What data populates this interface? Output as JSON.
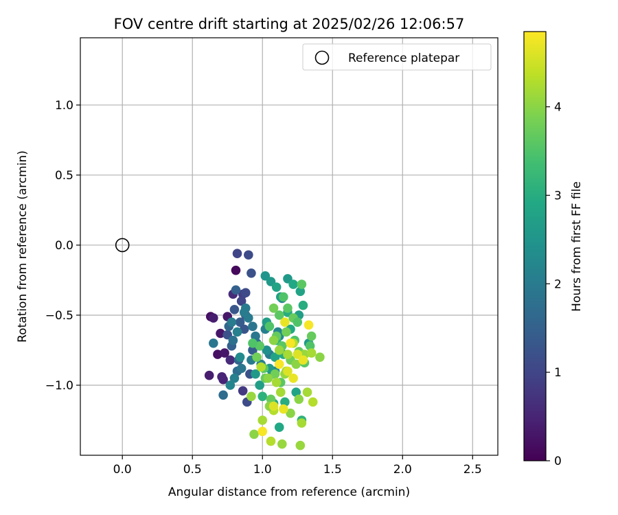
{
  "chart_data": {
    "type": "scatter",
    "title": "FOV centre drift starting at 2025/02/26 12:06:57",
    "xlabel": "Angular distance from reference (arcmin)",
    "ylabel": "Rotation from reference (arcmin)",
    "xlim": [
      -0.3,
      2.68
    ],
    "ylim": [
      -1.5,
      1.48
    ],
    "x_ticks": [
      0.0,
      0.5,
      1.0,
      1.5,
      2.0,
      2.5
    ],
    "x_tick_labels": [
      "0.0",
      "0.5",
      "1.0",
      "1.5",
      "2.0",
      "2.5"
    ],
    "y_ticks": [
      -1.0,
      -0.5,
      0.0,
      0.5,
      1.0
    ],
    "y_tick_labels": [
      "−1.0",
      "−0.5",
      "0.0",
      "0.5",
      "1.0"
    ],
    "grid": true,
    "legend": {
      "placement": "top-right",
      "entries": [
        "Reference platepar"
      ]
    },
    "reference_point": {
      "x": 0.0,
      "y": 0.0
    },
    "colorbar": {
      "label": "Hours from first FF file",
      "range": [
        0,
        4.85
      ],
      "ticks": [
        0,
        1,
        2,
        3,
        4
      ],
      "tick_labels": [
        "0",
        "1",
        "2",
        "3",
        "4"
      ],
      "colormap": "viridis"
    },
    "series": [
      {
        "x": [
          0.81,
          0.63,
          0.7,
          0.65,
          0.68,
          0.75,
          0.72,
          0.62,
          0.71,
          0.77,
          0.73,
          0.79
        ],
        "y": [
          -0.18,
          -0.51,
          -0.63,
          -0.52,
          -0.78,
          -0.51,
          -0.96,
          -0.93,
          -0.94,
          -0.82,
          -0.77,
          -0.35
        ],
        "hours": [
          0.1,
          0.2,
          0.3,
          0.4,
          0.2,
          0.3,
          0.5,
          0.4,
          0.5,
          0.6,
          0.3,
          0.6
        ]
      },
      {
        "x": [
          0.82,
          0.9,
          0.86,
          0.92,
          0.85,
          0.8,
          0.88,
          0.84,
          0.75,
          0.78,
          0.87,
          0.93,
          0.83,
          0.72,
          0.89,
          0.86,
          0.81,
          0.76,
          0.79,
          0.82,
          0.91,
          0.88
        ],
        "y": [
          -0.06,
          -0.07,
          -0.35,
          -0.2,
          -0.4,
          -0.46,
          -0.34,
          -0.55,
          -0.64,
          -0.72,
          -0.6,
          -0.75,
          -0.82,
          -1.07,
          -1.12,
          -1.04,
          -0.32,
          -0.58,
          -0.68,
          -0.9,
          -0.92,
          -0.5
        ],
        "hours": [
          1.0,
          1.1,
          0.9,
          1.2,
          1.0,
          1.3,
          1.1,
          1.4,
          1.2,
          1.5,
          1.3,
          1.4,
          1.6,
          1.7,
          1.1,
          0.8,
          1.5,
          1.6,
          1.8,
          1.7,
          1.2,
          1.4
        ]
      },
      {
        "x": [
          0.65,
          0.78,
          0.82,
          0.88,
          0.95,
          0.98,
          1.02,
          1.05,
          1.09,
          1.11,
          1.14,
          0.92,
          0.85,
          0.8,
          0.77,
          0.84,
          0.9,
          0.96,
          0.99,
          1.03,
          1.07,
          1.12,
          0.87,
          0.93
        ],
        "y": [
          -0.7,
          -0.55,
          -0.62,
          -0.45,
          -0.65,
          -0.72,
          -0.6,
          -0.78,
          -0.9,
          -0.62,
          -0.38,
          -0.82,
          -0.88,
          -0.95,
          -1.0,
          -0.8,
          -0.52,
          -0.7,
          -0.85,
          -0.75,
          -0.92,
          -0.65,
          -0.48,
          -0.58
        ],
        "hours": [
          1.9,
          2.0,
          2.1,
          2.0,
          1.9,
          2.2,
          2.1,
          2.0,
          2.3,
          2.2,
          2.1,
          2.0,
          1.9,
          2.1,
          2.2,
          2.3,
          2.0,
          1.8,
          2.1,
          2.4,
          2.2,
          2.3,
          2.0,
          1.9
        ]
      },
      {
        "x": [
          1.02,
          1.06,
          1.1,
          1.13,
          1.18,
          1.22,
          1.27,
          1.29,
          1.26,
          1.33,
          1.2,
          1.15,
          1.09,
          1.05,
          0.98,
          1.0,
          1.08,
          1.16,
          1.24,
          1.28,
          1.12,
          1.18,
          1.03,
          0.95,
          1.1
        ],
        "y": [
          -0.22,
          -0.26,
          -0.3,
          -0.37,
          -0.24,
          -0.28,
          -0.33,
          -0.43,
          -0.5,
          -0.7,
          -0.6,
          -0.78,
          -0.8,
          -0.88,
          -1.0,
          -1.08,
          -1.13,
          -1.12,
          -1.05,
          -1.25,
          -1.3,
          -0.48,
          -0.55,
          -0.92,
          -0.68
        ],
        "hours": [
          2.5,
          2.6,
          2.8,
          2.7,
          2.6,
          2.9,
          2.8,
          3.0,
          2.7,
          2.6,
          2.9,
          3.0,
          2.8,
          2.6,
          2.7,
          3.1,
          2.9,
          3.0,
          2.8,
          3.1,
          2.9,
          3.0,
          2.7,
          2.6,
          3.1
        ]
      },
      {
        "x": [
          1.15,
          1.18,
          1.22,
          1.25,
          1.12,
          1.08,
          1.05,
          1.1,
          1.14,
          1.2,
          1.26,
          1.3,
          1.34,
          1.02,
          0.98,
          0.93,
          0.96,
          1.01,
          1.06,
          1.17,
          1.23,
          1.28,
          1.35,
          1.09,
          1.13
        ],
        "y": [
          -0.37,
          -0.45,
          -0.52,
          -0.55,
          -0.5,
          -0.45,
          -0.58,
          -0.65,
          -0.72,
          -0.82,
          -0.76,
          -0.84,
          -0.72,
          -0.95,
          -0.72,
          -0.7,
          -0.8,
          -0.88,
          -1.1,
          -0.62,
          -0.68,
          -0.28,
          -0.65,
          -0.92,
          -0.98
        ],
        "hours": [
          3.5,
          3.6,
          3.7,
          3.5,
          3.6,
          3.8,
          3.5,
          3.7,
          3.6,
          3.8,
          3.7,
          3.6,
          3.5,
          3.7,
          3.6,
          3.5,
          3.8,
          3.6,
          3.7,
          3.8,
          3.5,
          3.6,
          3.7,
          3.8,
          3.6
        ]
      },
      {
        "x": [
          1.08,
          1.12,
          1.18,
          1.24,
          1.3,
          1.35,
          1.41,
          1.22,
          1.16,
          1.1,
          1.04,
          0.99,
          0.92,
          0.94,
          1.0,
          1.06,
          1.14,
          1.2,
          1.28,
          1.08,
          1.27,
          1.26,
          1.32,
          1.36,
          1.17,
          1.13,
          1.05
        ],
        "y": [
          -0.68,
          -0.75,
          -0.78,
          -0.85,
          -0.78,
          -0.77,
          -0.8,
          -0.7,
          -0.92,
          -0.98,
          -0.95,
          -0.87,
          -1.08,
          -1.35,
          -1.25,
          -1.4,
          -1.42,
          -1.2,
          -1.27,
          -1.18,
          -1.43,
          -1.1,
          -1.05,
          -1.12,
          -0.9,
          -1.05,
          -1.15
        ],
        "hours": [
          4.0,
          4.1,
          4.2,
          4.0,
          4.1,
          4.2,
          4.0,
          4.3,
          4.1,
          4.2,
          4.0,
          4.3,
          4.1,
          4.0,
          4.2,
          4.3,
          4.1,
          4.0,
          4.2,
          4.3,
          4.1,
          4.0,
          4.2,
          4.3,
          4.1,
          4.2,
          4.0
        ]
      },
      {
        "x": [
          1.16,
          1.2,
          1.25,
          1.33,
          1.29,
          1.18,
          1.12,
          1.22,
          1.08,
          1.0,
          1.15
        ],
        "y": [
          -0.55,
          -0.7,
          -0.78,
          -0.57,
          -0.82,
          -0.9,
          -0.85,
          -0.95,
          -1.15,
          -1.33,
          -1.17
        ],
        "hours": [
          4.7,
          4.8,
          4.6,
          4.8,
          4.7,
          4.6,
          4.8,
          4.7,
          4.6,
          4.8,
          4.7
        ]
      }
    ]
  }
}
